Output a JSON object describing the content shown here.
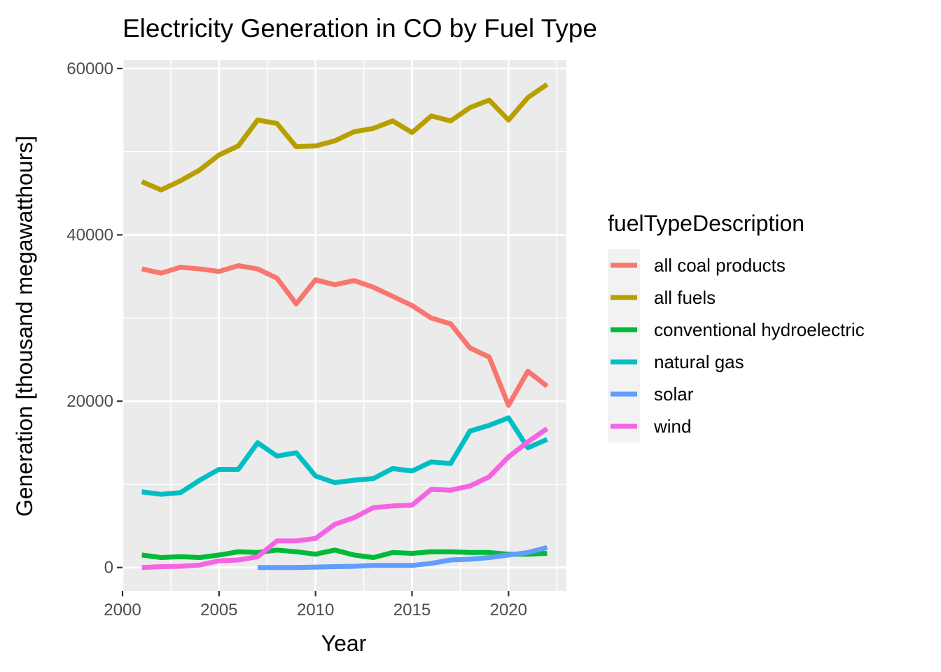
{
  "chart_data": {
    "type": "line",
    "title": "Electricity Generation in CO by Fuel Type",
    "xlabel": "Year",
    "ylabel": "Generation [thousand megawatthours]",
    "xlim": [
      2000,
      2023
    ],
    "ylim": [
      -2800,
      61000
    ],
    "x_ticks": [
      "2000",
      "2005",
      "2010",
      "2015",
      "2020"
    ],
    "y_ticks": [
      "0",
      "20000",
      "40000",
      "60000"
    ],
    "grid": true,
    "legend": {
      "title": "fuelTypeDescription",
      "position": "right"
    },
    "series": [
      {
        "name": "all coal products",
        "color": "#F8766D",
        "x": [
          2001,
          2002,
          2003,
          2004,
          2005,
          2006,
          2007,
          2008,
          2009,
          2010,
          2011,
          2012,
          2013,
          2014,
          2015,
          2016,
          2017,
          2018,
          2019,
          2020,
          2021,
          2022
        ],
        "values": [
          35900,
          35400,
          36100,
          35900,
          35600,
          36300,
          35900,
          34800,
          31700,
          34600,
          34000,
          34500,
          33700,
          32600,
          31500,
          30000,
          29300,
          26400,
          25300,
          19500,
          23600,
          21800
        ]
      },
      {
        "name": "all fuels",
        "color": "#B79F00",
        "x": [
          2001,
          2002,
          2003,
          2004,
          2005,
          2006,
          2007,
          2008,
          2009,
          2010,
          2011,
          2012,
          2013,
          2014,
          2015,
          2016,
          2017,
          2018,
          2019,
          2020,
          2021,
          2022
        ],
        "values": [
          46400,
          45400,
          46500,
          47800,
          49600,
          50700,
          53800,
          53400,
          50600,
          50700,
          51300,
          52400,
          52800,
          53700,
          52300,
          54300,
          53700,
          55300,
          56200,
          53800,
          56500,
          58100
        ]
      },
      {
        "name": "conventional hydroelectric",
        "color": "#00BA38",
        "x": [
          2001,
          2002,
          2003,
          2004,
          2005,
          2006,
          2007,
          2008,
          2009,
          2010,
          2011,
          2012,
          2013,
          2014,
          2015,
          2016,
          2017,
          2018,
          2019,
          2020,
          2021,
          2022
        ],
        "values": [
          1500,
          1200,
          1300,
          1200,
          1500,
          1900,
          1800,
          2100,
          1900,
          1600,
          2100,
          1500,
          1200,
          1800,
          1700,
          1900,
          1900,
          1800,
          1800,
          1600,
          1600,
          1700
        ]
      },
      {
        "name": "natural gas",
        "color": "#00BFC4",
        "x": [
          2001,
          2002,
          2003,
          2004,
          2005,
          2006,
          2007,
          2008,
          2009,
          2010,
          2011,
          2012,
          2013,
          2014,
          2015,
          2016,
          2017,
          2018,
          2019,
          2020,
          2021,
          2022
        ],
        "values": [
          9100,
          8800,
          9000,
          10500,
          11800,
          11800,
          15000,
          13400,
          13800,
          11000,
          10200,
          10500,
          10700,
          11900,
          11600,
          12700,
          12500,
          16400,
          17100,
          18000,
          14400,
          15400
        ]
      },
      {
        "name": "solar",
        "color": "#619CFF",
        "x": [
          2007,
          2008,
          2009,
          2010,
          2011,
          2012,
          2013,
          2014,
          2015,
          2016,
          2017,
          2018,
          2019,
          2020,
          2021,
          2022
        ],
        "values": [
          0,
          0,
          0,
          50,
          100,
          150,
          250,
          250,
          250,
          500,
          900,
          1000,
          1200,
          1500,
          1800,
          2400
        ]
      },
      {
        "name": "wind",
        "color": "#F564E3",
        "x": [
          2001,
          2002,
          2003,
          2004,
          2005,
          2006,
          2007,
          2008,
          2009,
          2010,
          2011,
          2012,
          2013,
          2014,
          2015,
          2016,
          2017,
          2018,
          2019,
          2020,
          2021,
          2022
        ],
        "values": [
          0,
          100,
          150,
          300,
          800,
          900,
          1300,
          3200,
          3200,
          3500,
          5200,
          6000,
          7200,
          7400,
          7500,
          9400,
          9300,
          9800,
          10900,
          13300,
          15100,
          16700
        ]
      }
    ]
  }
}
